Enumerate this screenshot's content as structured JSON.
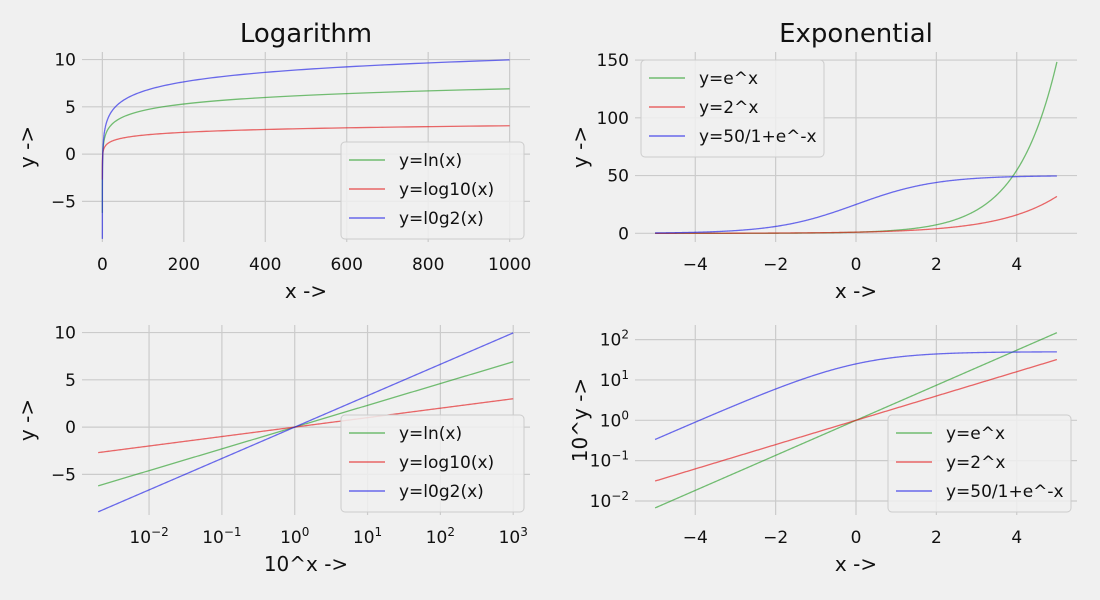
{
  "colors": {
    "background": "#f0f0f0",
    "grid": "#cbcbcb",
    "green": "#2ca02c",
    "red": "#e41a1c",
    "blue": "#1f1fe6",
    "legend_bg": "#f0f0f0",
    "legend_border": "#cccccc"
  },
  "chart_data": [
    {
      "type": "line",
      "title": "Logarithm",
      "xlabel": "x ->",
      "ylabel": "y ->",
      "xscale": "linear",
      "yscale": "linear",
      "xlim": [
        -50,
        1050
      ],
      "ylim": [
        -9.3,
        10.8
      ],
      "xticks": [
        0,
        200,
        400,
        600,
        800,
        1000
      ],
      "xticklabels": [
        "0",
        "200",
        "400",
        "600",
        "800",
        "1000"
      ],
      "yticks": [
        -5,
        0,
        5,
        10
      ],
      "yticklabels": [
        "−5",
        "0",
        "5",
        "10"
      ],
      "grid": true,
      "legend_loc": "lower-right",
      "series": [
        {
          "name": "y=ln(x)",
          "color_key": "green",
          "fn": "ln",
          "x_start": 0.002,
          "x_end": 1000
        },
        {
          "name": "y=log10(x)",
          "color_key": "red",
          "fn": "log10",
          "x_start": 0.002,
          "x_end": 1000
        },
        {
          "name": "y=l0g2(x)",
          "color_key": "blue",
          "fn": "log2",
          "x_start": 0.002,
          "x_end": 1000
        }
      ]
    },
    {
      "type": "line",
      "title": "Exponential",
      "xlabel": "x ->",
      "ylabel": "y ->",
      "xscale": "linear",
      "yscale": "linear",
      "xlim": [
        -5.5,
        5.5
      ],
      "ylim": [
        -7.5,
        157
      ],
      "xticks": [
        -4,
        -2,
        0,
        2,
        4
      ],
      "xticklabels": [
        "−4",
        "−2",
        "0",
        "2",
        "4"
      ],
      "yticks": [
        0,
        50,
        100,
        150
      ],
      "yticklabels": [
        "0",
        "50",
        "100",
        "150"
      ],
      "grid": true,
      "legend_loc": "upper-left",
      "series": [
        {
          "name": "y=e^x",
          "color_key": "green",
          "fn": "exp",
          "x_start": -5,
          "x_end": 5
        },
        {
          "name": "y=2^x",
          "color_key": "red",
          "fn": "pow2",
          "x_start": -5,
          "x_end": 5
        },
        {
          "name": "y=50/1+e^-x",
          "color_key": "blue",
          "fn": "sigmoid50",
          "x_start": -5,
          "x_end": 5
        }
      ]
    },
    {
      "type": "line",
      "title": "",
      "xlabel": "10^x ->",
      "ylabel": "y ->",
      "xscale": "log",
      "yscale": "linear",
      "xlim": [
        0.0012,
        1700
      ],
      "ylim": [
        -9.3,
        10.8
      ],
      "xticks": [
        0.01,
        0.1,
        1,
        10,
        100,
        1000
      ],
      "xticklabels": [
        [
          "10",
          "−2"
        ],
        [
          "10",
          "−1"
        ],
        [
          "10",
          "0"
        ],
        [
          "10",
          "1"
        ],
        [
          "10",
          "2"
        ],
        [
          "10",
          "3"
        ]
      ],
      "yticks": [
        -5,
        0,
        5,
        10
      ],
      "yticklabels": [
        "−5",
        "0",
        "5",
        "10"
      ],
      "grid": true,
      "legend_loc": "lower-right",
      "series": [
        {
          "name": "y=ln(x)",
          "color_key": "green",
          "fn": "ln",
          "x_start": 0.002,
          "x_end": 1000
        },
        {
          "name": "y=log10(x)",
          "color_key": "red",
          "fn": "log10",
          "x_start": 0.002,
          "x_end": 1000
        },
        {
          "name": "y=l0g2(x)",
          "color_key": "blue",
          "fn": "log2",
          "x_start": 0.002,
          "x_end": 1000
        }
      ]
    },
    {
      "type": "line",
      "title": "",
      "xlabel": "x ->",
      "ylabel": "10^y ->",
      "xscale": "linear",
      "yscale": "log",
      "xlim": [
        -5.5,
        5.5
      ],
      "ylim": [
        0.0045,
        230
      ],
      "xticks": [
        -4,
        -2,
        0,
        2,
        4
      ],
      "xticklabels": [
        "−4",
        "−2",
        "0",
        "2",
        "4"
      ],
      "yticks": [
        0.01,
        0.1,
        1,
        10,
        100
      ],
      "yticklabels": [
        [
          "10",
          "−2"
        ],
        [
          "10",
          "−1"
        ],
        [
          "10",
          "0"
        ],
        [
          "10",
          "1"
        ],
        [
          "10",
          "2"
        ]
      ],
      "grid": true,
      "legend_loc": "lower-right",
      "series": [
        {
          "name": "y=e^x",
          "color_key": "green",
          "fn": "exp",
          "x_start": -5,
          "x_end": 5
        },
        {
          "name": "y=2^x",
          "color_key": "red",
          "fn": "pow2",
          "x_start": -5,
          "x_end": 5
        },
        {
          "name": "y=50/1+e^-x",
          "color_key": "blue",
          "fn": "sigmoid50",
          "x_start": -5,
          "x_end": 5
        }
      ]
    }
  ]
}
